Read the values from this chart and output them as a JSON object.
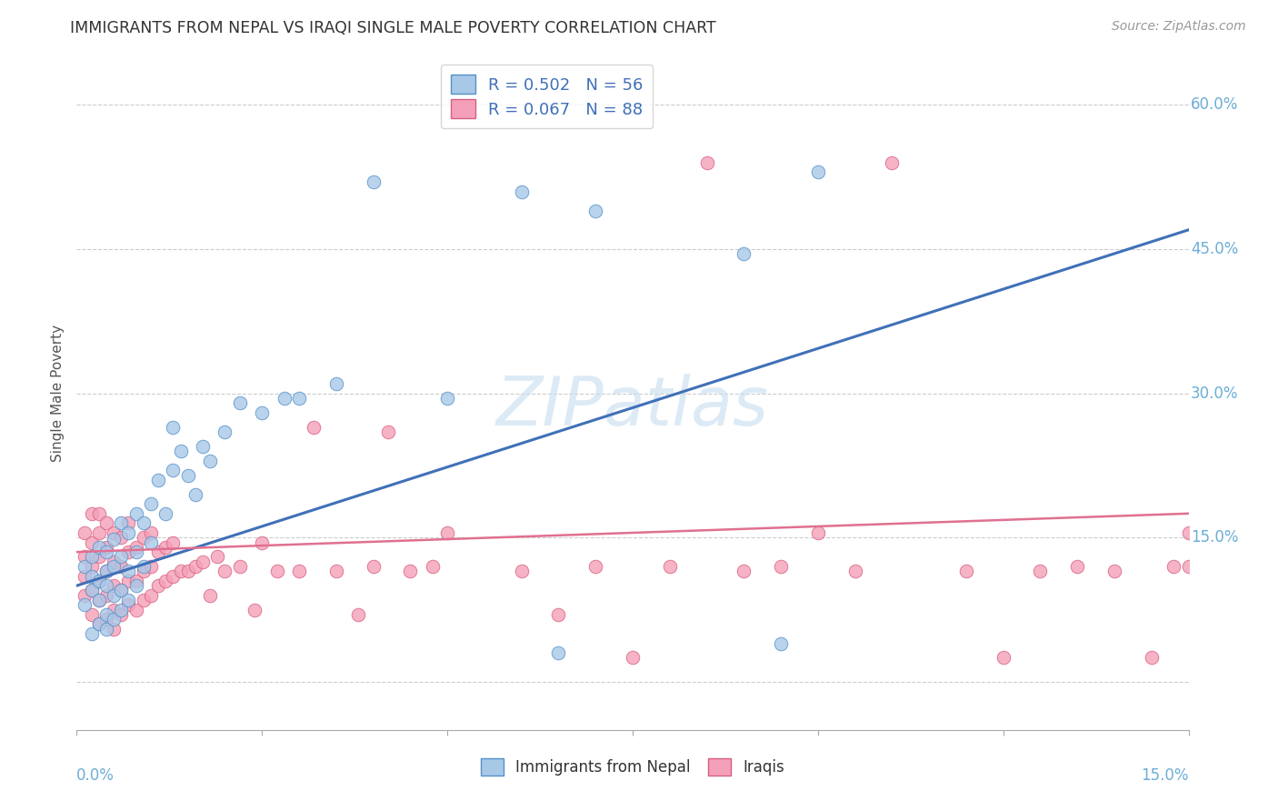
{
  "title": "IMMIGRANTS FROM NEPAL VS IRAQI SINGLE MALE POVERTY CORRELATION CHART",
  "source": "Source: ZipAtlas.com",
  "ylabel": "Single Male Poverty",
  "xlim": [
    0.0,
    0.15
  ],
  "ylim": [
    -0.05,
    0.65
  ],
  "watermark": "ZIPatlas",
  "nepal_color": "#a8c8e8",
  "iraq_color": "#f4a0b8",
  "nepal_edge": "#5590c8",
  "iraq_edge": "#d86080",
  "nepal_line_color": "#4070b8",
  "iraq_line_color": "#e07090",
  "background_color": "#ffffff",
  "grid_color": "#cccccc",
  "nepal_scatter_x": [
    0.001,
    0.001,
    0.002,
    0.002,
    0.002,
    0.002,
    0.003,
    0.003,
    0.003,
    0.003,
    0.004,
    0.004,
    0.004,
    0.004,
    0.004,
    0.005,
    0.005,
    0.005,
    0.005,
    0.006,
    0.006,
    0.006,
    0.006,
    0.007,
    0.007,
    0.007,
    0.008,
    0.008,
    0.008,
    0.009,
    0.009,
    0.01,
    0.01,
    0.011,
    0.012,
    0.013,
    0.013,
    0.014,
    0.015,
    0.016,
    0.017,
    0.018,
    0.02,
    0.022,
    0.025,
    0.028,
    0.03,
    0.035,
    0.04,
    0.05,
    0.06,
    0.065,
    0.07,
    0.09,
    0.095,
    0.1
  ],
  "nepal_scatter_y": [
    0.08,
    0.12,
    0.05,
    0.095,
    0.11,
    0.13,
    0.06,
    0.085,
    0.105,
    0.14,
    0.055,
    0.07,
    0.1,
    0.115,
    0.135,
    0.065,
    0.09,
    0.12,
    0.148,
    0.075,
    0.095,
    0.13,
    0.165,
    0.085,
    0.115,
    0.155,
    0.1,
    0.135,
    0.175,
    0.12,
    0.165,
    0.145,
    0.185,
    0.21,
    0.175,
    0.22,
    0.265,
    0.24,
    0.215,
    0.195,
    0.245,
    0.23,
    0.26,
    0.29,
    0.28,
    0.295,
    0.295,
    0.31,
    0.52,
    0.295,
    0.51,
    0.03,
    0.49,
    0.445,
    0.04,
    0.53
  ],
  "iraq_scatter_x": [
    0.001,
    0.001,
    0.001,
    0.001,
    0.002,
    0.002,
    0.002,
    0.002,
    0.002,
    0.003,
    0.003,
    0.003,
    0.003,
    0.003,
    0.003,
    0.004,
    0.004,
    0.004,
    0.004,
    0.004,
    0.005,
    0.005,
    0.005,
    0.005,
    0.005,
    0.006,
    0.006,
    0.006,
    0.006,
    0.007,
    0.007,
    0.007,
    0.007,
    0.008,
    0.008,
    0.008,
    0.009,
    0.009,
    0.009,
    0.01,
    0.01,
    0.01,
    0.011,
    0.011,
    0.012,
    0.012,
    0.013,
    0.013,
    0.014,
    0.015,
    0.016,
    0.017,
    0.018,
    0.019,
    0.02,
    0.022,
    0.024,
    0.025,
    0.027,
    0.03,
    0.032,
    0.035,
    0.038,
    0.04,
    0.042,
    0.045,
    0.048,
    0.05,
    0.06,
    0.065,
    0.07,
    0.075,
    0.08,
    0.085,
    0.09,
    0.095,
    0.1,
    0.105,
    0.11,
    0.12,
    0.125,
    0.13,
    0.135,
    0.14,
    0.145,
    0.148,
    0.15,
    0.15
  ],
  "iraq_scatter_y": [
    0.09,
    0.11,
    0.13,
    0.155,
    0.07,
    0.095,
    0.12,
    0.145,
    0.175,
    0.06,
    0.085,
    0.105,
    0.13,
    0.155,
    0.175,
    0.065,
    0.09,
    0.115,
    0.14,
    0.165,
    0.055,
    0.075,
    0.1,
    0.125,
    0.155,
    0.07,
    0.095,
    0.12,
    0.15,
    0.08,
    0.105,
    0.135,
    0.165,
    0.075,
    0.105,
    0.14,
    0.085,
    0.115,
    0.15,
    0.09,
    0.12,
    0.155,
    0.1,
    0.135,
    0.105,
    0.14,
    0.11,
    0.145,
    0.115,
    0.115,
    0.12,
    0.125,
    0.09,
    0.13,
    0.115,
    0.12,
    0.075,
    0.145,
    0.115,
    0.115,
    0.265,
    0.115,
    0.07,
    0.12,
    0.26,
    0.115,
    0.12,
    0.155,
    0.115,
    0.07,
    0.12,
    0.025,
    0.12,
    0.54,
    0.115,
    0.12,
    0.155,
    0.115,
    0.54,
    0.115,
    0.025,
    0.115,
    0.12,
    0.115,
    0.025,
    0.12,
    0.12,
    0.155
  ]
}
